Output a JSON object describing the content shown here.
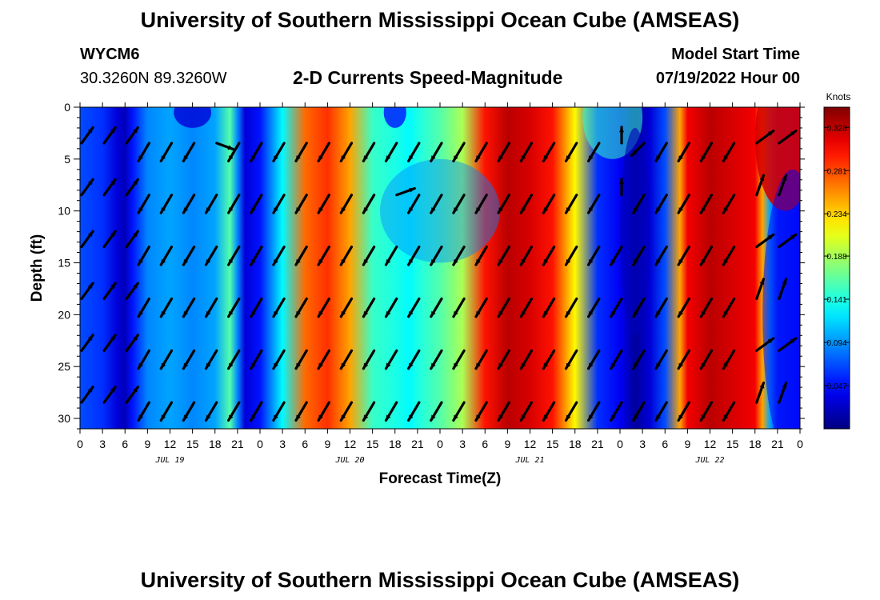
{
  "header": {
    "title": "University of Southern Mississippi Ocean Cube (AMSEAS)",
    "station_id": "WYCM6",
    "coords": "30.3260N  89.3260W",
    "chart_title": "2-D Currents Speed-Magnitude",
    "model_start_label": "Model Start Time",
    "model_start_value": "07/19/2022 Hour 00"
  },
  "footer": {
    "title": "University of Southern Mississippi Ocean Cube (AMSEAS)"
  },
  "chart_data": {
    "type": "heatmap",
    "title": "2-D Currents Speed-Magnitude",
    "xlabel": "Forecast Time(Z)",
    "ylabel": "Depth (ft)",
    "x_range_hours": [
      0,
      96
    ],
    "ylim": [
      0,
      31
    ],
    "y_ticks": [
      "0",
      "5",
      "10",
      "15",
      "20",
      "25",
      "30"
    ],
    "x_ticks": [
      "0",
      "3",
      "6",
      "9",
      "12",
      "15",
      "18",
      "21",
      "0",
      "3",
      "6",
      "9",
      "12",
      "15",
      "18",
      "21",
      "0",
      "3",
      "6",
      "9",
      "12",
      "15",
      "18",
      "21",
      "0",
      "3",
      "6",
      "9",
      "12",
      "15",
      "18",
      "21",
      "0"
    ],
    "day_labels": [
      "JUL 19",
      "JUL 20",
      "JUL 21",
      "JUL 22"
    ],
    "colorbar": {
      "unit": "Knots",
      "min": 0.0,
      "max": 0.35,
      "tick_labels": [
        "0.328",
        "0.281",
        "0.234",
        "0.188",
        "0.141",
        "0.094",
        "0.047"
      ],
      "tick_values": [
        0.328,
        0.281,
        0.234,
        0.188,
        0.141,
        0.094,
        0.047
      ]
    },
    "speed_profile": {
      "hours": [
        0,
        3,
        5,
        6,
        7,
        9,
        12,
        15,
        18,
        20,
        21,
        22,
        24,
        27,
        30,
        33,
        36,
        39,
        42,
        44,
        45,
        48,
        51,
        54,
        57,
        60,
        63,
        66,
        69,
        72,
        74,
        75,
        76,
        78,
        80,
        81,
        84,
        87,
        90,
        91,
        92,
        93,
        96
      ],
      "knots": [
        0.07,
        0.06,
        0.03,
        0.02,
        0.05,
        0.09,
        0.1,
        0.09,
        0.1,
        0.16,
        0.09,
        0.03,
        0.05,
        0.13,
        0.27,
        0.29,
        0.25,
        0.15,
        0.14,
        0.13,
        0.14,
        0.16,
        0.19,
        0.3,
        0.33,
        0.32,
        0.3,
        0.22,
        0.06,
        0.04,
        0.01,
        0.02,
        0.03,
        0.07,
        0.25,
        0.31,
        0.33,
        0.32,
        0.31,
        0.25,
        0.1,
        0.06,
        0.05
      ]
    },
    "arrow_direction_note": "Most arrows point toward southwest; near-surface and late-period arrows vary."
  }
}
